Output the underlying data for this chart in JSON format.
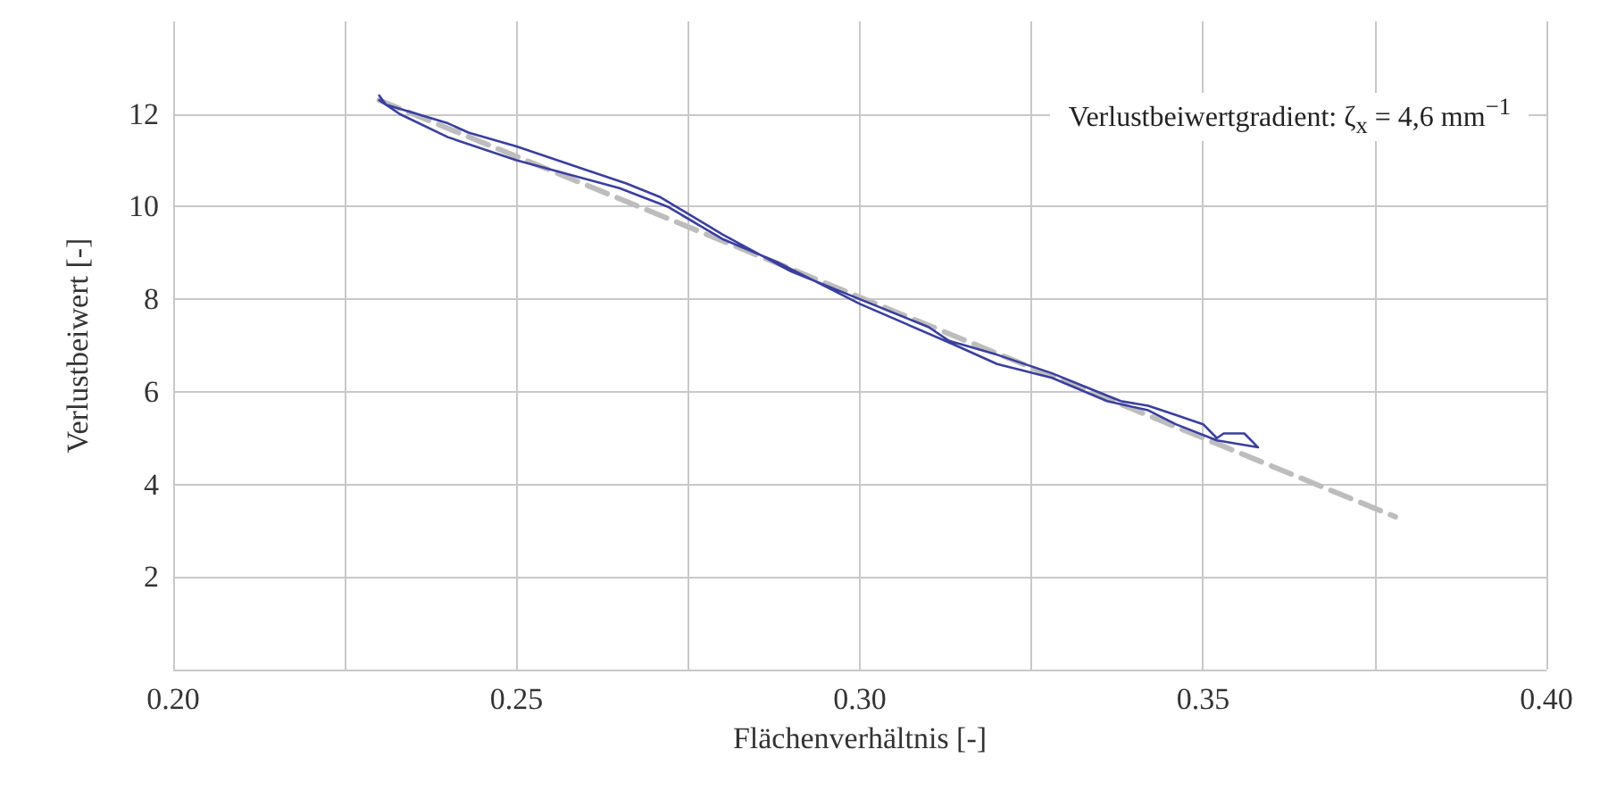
{
  "chart_data": {
    "type": "line",
    "xlabel": "Flächenverhältnis [-]",
    "ylabel": "Verlustbeiwert [-]",
    "annotations": [
      "Verlustbeiwertgradient: ζ$_{x}$ = 4,6 mm$^{−1}$"
    ],
    "xlim": [
      0.2,
      0.4
    ],
    "xticks": [
      {
        "value": 0.2,
        "label": "0.20"
      },
      {
        "value": 0.225,
        "label": null
      },
      0.25,
      {
        "value": 0.275,
        "label": null
      },
      {
        "value": 0.3,
        "label": "0.30"
      },
      {
        "value": 0.325,
        "label": null
      },
      0.35,
      {
        "value": 0.375,
        "label": null
      },
      {
        "value": 0.4,
        "label": "0.40"
      }
    ],
    "ylim": [
      0,
      14
    ],
    "yticks": [
      {
        "value": 0,
        "label": null
      },
      2,
      4,
      6,
      8,
      10,
      12
    ],
    "grid": true,
    "marker": "none",
    "series": [
      {
        "color": "#3a3f9e",
        "line_style": "solid",
        "x": [
          0.23,
          0.231,
          0.24,
          0.243,
          0.25,
          0.26,
          0.266,
          0.271,
          0.28,
          0.29,
          0.3,
          0.31,
          0.313,
          0.32,
          0.328,
          0.333,
          0.338,
          0.342,
          0.346,
          0.35,
          0.352,
          0.353,
          0.356,
          0.358,
          0.352,
          0.346,
          0.342,
          0.336,
          0.328,
          0.32,
          0.314,
          0.3,
          0.288,
          0.28,
          0.272,
          0.265,
          0.25,
          0.24,
          0.233,
          0.23
        ],
        "values": [
          12.4,
          12.2,
          11.8,
          11.6,
          11.3,
          10.8,
          10.5,
          10.2,
          9.4,
          8.6,
          8.0,
          7.4,
          7.1,
          6.8,
          6.4,
          6.1,
          5.8,
          5.7,
          5.5,
          5.3,
          5.0,
          5.1,
          5.1,
          4.8,
          4.95,
          5.3,
          5.6,
          5.8,
          6.3,
          6.6,
          7.0,
          7.9,
          8.8,
          9.3,
          10.0,
          10.4,
          11.0,
          11.5,
          12.0,
          12.3
        ]
      },
      {
        "color": "#bdbdbd",
        "line_style": "dashed",
        "x": [
          0.23,
          0.378
        ],
        "values": [
          12.3,
          3.3
        ]
      }
    ]
  }
}
